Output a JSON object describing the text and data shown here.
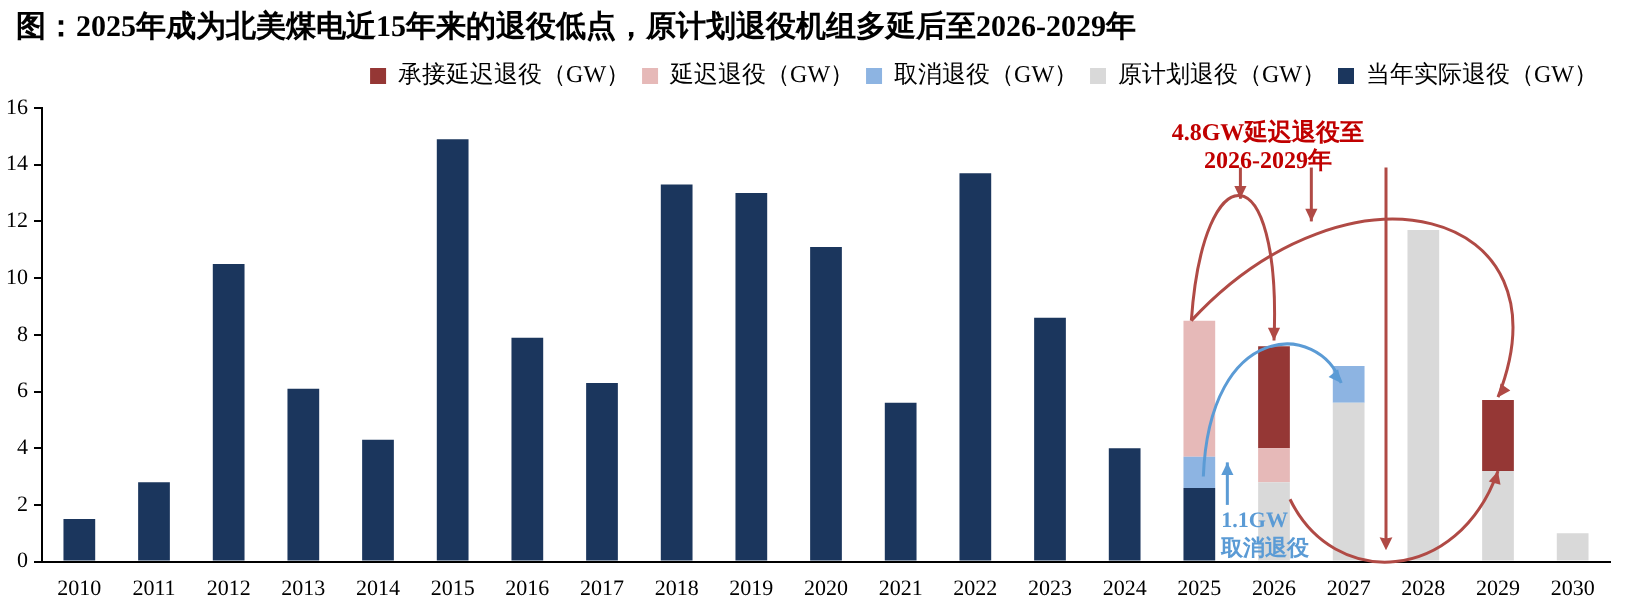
{
  "chart_data": {
    "type": "bar",
    "title": "图：2025年成为北美煤电近15年来的退役低点，原计划退役机组多延后至2026-2029年",
    "categories": [
      "2010",
      "2011",
      "2012",
      "2013",
      "2014",
      "2015",
      "2016",
      "2017",
      "2018",
      "2019",
      "2020",
      "2021",
      "2022",
      "2023",
      "2024",
      "2025",
      "2026",
      "2027",
      "2028",
      "2029",
      "2030"
    ],
    "stacked": true,
    "series": [
      {
        "name": "当年实际退役（GW）",
        "color": "#1b365d",
        "values": [
          1.5,
          2.8,
          10.5,
          6.1,
          4.3,
          14.9,
          7.9,
          6.3,
          13.3,
          13.0,
          11.1,
          5.6,
          13.7,
          8.6,
          4.0,
          2.6,
          null,
          null,
          null,
          null,
          null
        ]
      },
      {
        "name": "原计划退役（GW）",
        "color": "#d9d9d9",
        "values": [
          null,
          null,
          null,
          null,
          null,
          null,
          null,
          null,
          null,
          null,
          null,
          null,
          null,
          null,
          null,
          null,
          2.8,
          5.6,
          11.7,
          3.2,
          1.0
        ]
      },
      {
        "name": "取消退役（GW）",
        "color": "#8db4e2",
        "values": [
          null,
          null,
          null,
          null,
          null,
          null,
          null,
          null,
          null,
          null,
          null,
          null,
          null,
          null,
          null,
          1.1,
          null,
          1.3,
          null,
          null,
          null
        ]
      },
      {
        "name": "延迟退役（GW）",
        "color": "#e6b9b8",
        "values": [
          null,
          null,
          null,
          null,
          null,
          null,
          null,
          null,
          null,
          null,
          null,
          null,
          null,
          null,
          null,
          4.8,
          1.2,
          null,
          null,
          null,
          null
        ]
      },
      {
        "name": "承接延迟退役（GW）",
        "color": "#953735",
        "values": [
          null,
          null,
          null,
          null,
          null,
          null,
          null,
          null,
          null,
          null,
          null,
          null,
          null,
          null,
          null,
          null,
          3.6,
          null,
          null,
          2.5,
          null
        ]
      }
    ],
    "ylim": [
      0,
      16
    ],
    "yticks": [
      0,
      2,
      4,
      6,
      8,
      10,
      12,
      14,
      16
    ],
    "grid": false,
    "legend": "top right",
    "annotations": [
      "4.8GW延迟退役至\n2026-2029年",
      {
        "text": "1.1GW\n取消退役",
        "x": "2025",
        "y": 3.7
      }
    ]
  }
}
